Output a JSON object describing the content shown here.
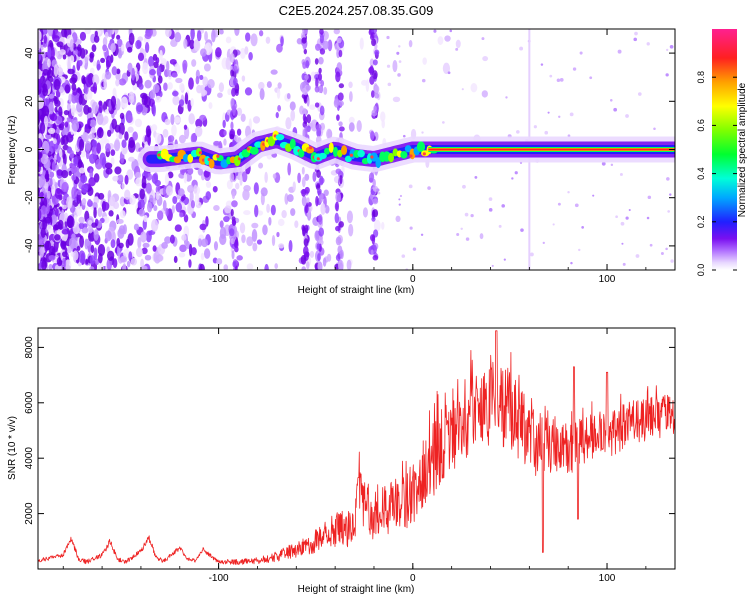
{
  "title": "C2E5.2024.257.08.35.G09",
  "colors": {
    "snr_line": "#ee2222",
    "axis": "#000000",
    "signal_core": "#ff2020"
  },
  "chart_data": [
    {
      "type": "heatmap",
      "name": "spectrogram",
      "xlabel": "Height of straight line (km)",
      "ylabel": "Frequency (Hz)",
      "xlim": [
        -193,
        135
      ],
      "ylim": [
        -50,
        50
      ],
      "x_ticks": [
        -100,
        0,
        100
      ],
      "y_ticks": [
        -40,
        -20,
        0,
        20,
        40
      ],
      "x_tick_labels": [
        "-100",
        "0",
        "100"
      ],
      "y_tick_labels": [
        "-40",
        "-20",
        "0",
        "20",
        "40"
      ],
      "colorbar": {
        "label": "Normalized spectral amplitude",
        "range": [
          0,
          1
        ],
        "ticks": [
          0.0,
          0.2,
          0.4,
          0.6,
          0.8
        ],
        "tick_labels": [
          "0.0",
          "0.2",
          "0.4",
          "0.6",
          "0.8"
        ]
      },
      "signal_track": {
        "x": [
          -130,
          -120,
          -110,
          -100,
          -90,
          -80,
          -70,
          -60,
          -50,
          -40,
          -30,
          -20,
          -10,
          0,
          10,
          20,
          60,
          100,
          135
        ],
        "y": [
          -4,
          -3,
          -2,
          -5,
          -4,
          2,
          4,
          1,
          -3,
          0,
          -3,
          -4,
          -2,
          0,
          0,
          0,
          0,
          0,
          0
        ]
      }
    },
    {
      "type": "line",
      "name": "snr",
      "xlabel": "Height of straight line (km)",
      "ylabel": "SNR (10 * v/v)",
      "xlim": [
        -193,
        135
      ],
      "ylim": [
        0,
        8700
      ],
      "x_ticks": [
        -100,
        0,
        100
      ],
      "y_ticks": [
        2000,
        4000,
        6000,
        8000
      ],
      "x_tick_labels": [
        "-100",
        "0",
        "100"
      ],
      "y_tick_labels": [
        "2000",
        "4000",
        "6000",
        "8000"
      ],
      "series": [
        {
          "name": "SNR",
          "envelope_x": [
            -193,
            -190,
            -180,
            -176,
            -172,
            -168,
            -160,
            -156,
            -152,
            -148,
            -140,
            -136,
            -132,
            -128,
            -124,
            -120,
            -116,
            -112,
            -108,
            -100,
            -90,
            -80,
            -70,
            -60,
            -50,
            -40,
            -30,
            -28,
            -20,
            -10,
            0,
            5,
            10,
            15,
            20,
            30,
            40,
            45,
            50,
            55,
            60,
            65,
            70,
            75,
            80,
            90,
            100,
            110,
            120,
            135
          ],
          "envelope_y": [
            250,
            350,
            500,
            1100,
            350,
            250,
            500,
            1000,
            350,
            250,
            650,
            1150,
            400,
            280,
            550,
            750,
            380,
            300,
            700,
            250,
            250,
            300,
            450,
            700,
            1000,
            1400,
            1500,
            2800,
            1900,
            2200,
            2700,
            3300,
            3900,
            4600,
            5000,
            5600,
            5900,
            6100,
            5700,
            5200,
            4700,
            4500,
            4400,
            4300,
            4400,
            4600,
            4900,
            5200,
            5400,
            5600
          ],
          "noise_amplitude": [
            80,
            80,
            80,
            120,
            80,
            80,
            80,
            120,
            80,
            80,
            80,
            120,
            80,
            80,
            80,
            80,
            80,
            80,
            80,
            80,
            100,
            120,
            180,
            300,
            450,
            650,
            700,
            1000,
            900,
            1000,
            1100,
            1300,
            1400,
            1500,
            1500,
            1500,
            1500,
            1600,
            1500,
            1400,
            1300,
            1200,
            1100,
            1000,
            1000,
            950,
            900,
            850,
            800,
            750
          ],
          "peaks": [
            {
              "x": 43,
              "y": 8600
            },
            {
              "x": 67,
              "y": 8200
            },
            {
              "x": 100,
              "y": 7100
            },
            {
              "x": 83,
              "y": 7300
            },
            {
              "x": -28,
              "y": 3300
            }
          ],
          "dips": [
            {
              "x": 67,
              "y": 600
            },
            {
              "x": 85,
              "y": 1800
            }
          ]
        }
      ]
    }
  ]
}
